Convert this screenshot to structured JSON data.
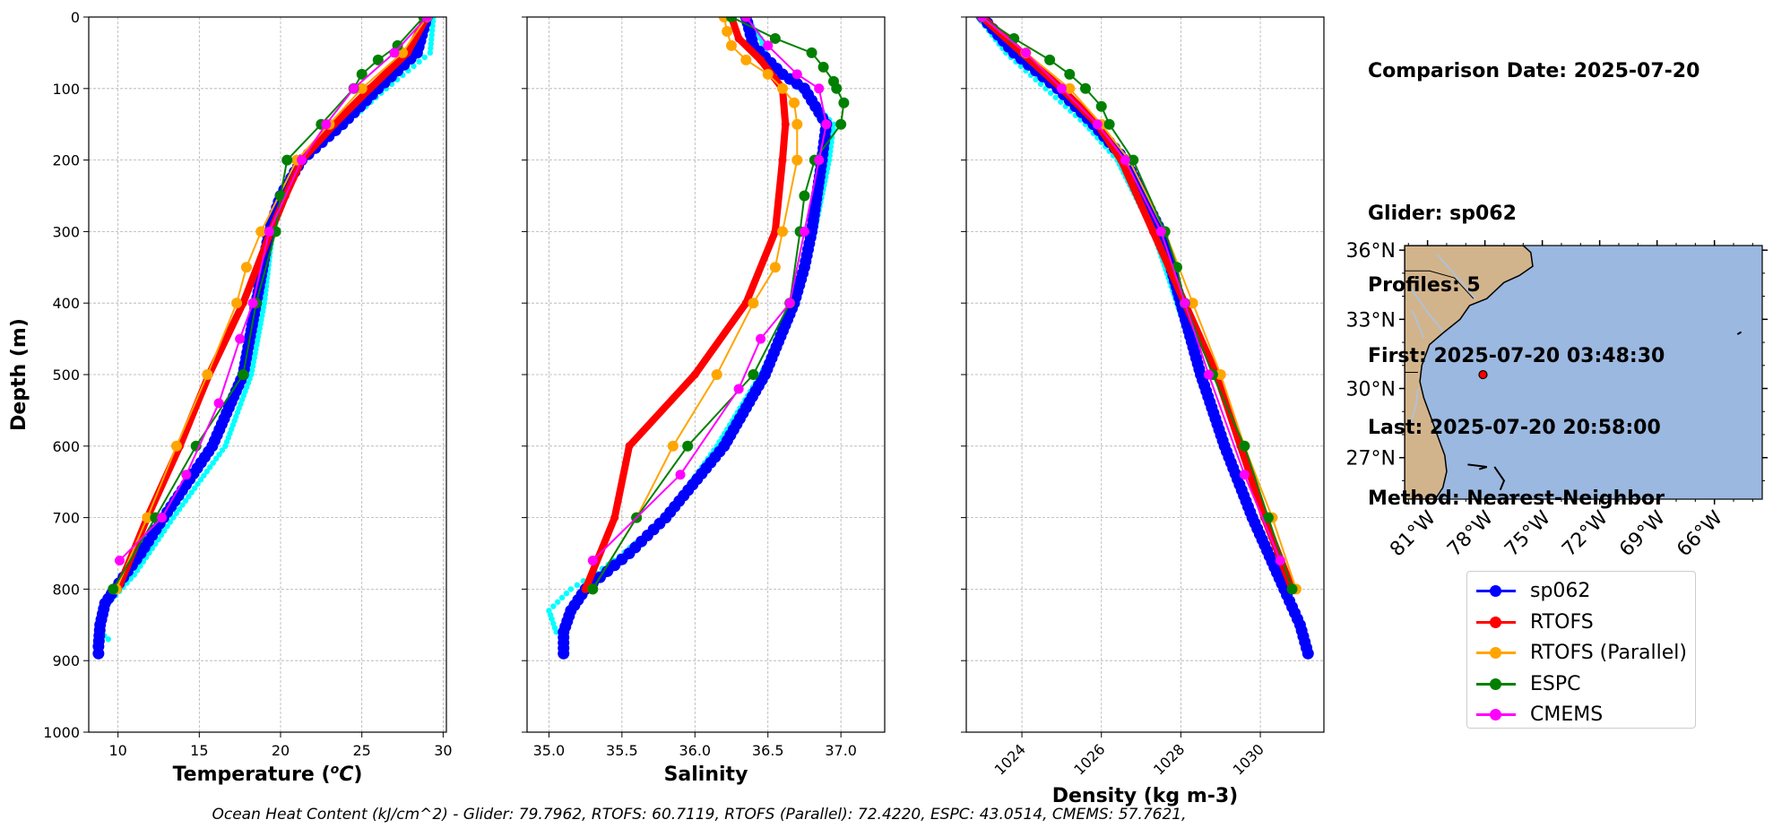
{
  "info": {
    "comparison_date": "Comparison Date: 2025-07-20",
    "glider": "Glider: sp062",
    "profiles": "Profiles: 5",
    "first": "First: 2025-07-20 03:48:30",
    "last": "Last: 2025-07-20 20:58:00",
    "method": "Method: Nearest-Neighbor"
  },
  "caption": "Ocean Heat Content (kJ/cm^2) - Glider: 79.7962,  RTOFS: 60.7119,  RTOFS (Parallel): 72.4220,  ESPC: 43.0514,  CMEMS: 57.7621,",
  "legend": [
    {
      "label": "sp062",
      "color": "#0000ff"
    },
    {
      "label": "RTOFS",
      "color": "#ff0000"
    },
    {
      "label": "RTOFS (Parallel)",
      "color": "#ffa500"
    },
    {
      "label": "ESPC",
      "color": "#008000"
    },
    {
      "label": "CMEMS",
      "color": "#ff00ff"
    }
  ],
  "colors": {
    "glider": "#0000ff",
    "glider_raw": "#00ffff",
    "rtofs": "#ff0000",
    "rtofs_parallel": "#ffa500",
    "espc": "#008000",
    "cmems": "#ff00ff",
    "land": "#d2b48c",
    "ocean": "#9bb8e0"
  },
  "chart_data": [
    {
      "type": "line",
      "panel": "temperature",
      "xlabel": "Temperature (°C)",
      "ylabel": "Depth (m)",
      "xlim": [
        8.2,
        30.2
      ],
      "ylim": [
        1000,
        0
      ],
      "xticks": [
        10,
        15,
        20,
        25,
        30
      ],
      "xtick_labels": [
        "10",
        "15",
        "20",
        "25",
        "30"
      ],
      "yticks": [
        0,
        100,
        200,
        300,
        400,
        500,
        600,
        700,
        800,
        900,
        1000
      ],
      "ytick_labels": [
        "0",
        "100",
        "200",
        "300",
        "400",
        "500",
        "600",
        "700",
        "800",
        "900",
        "1000"
      ],
      "grid": true,
      "series": [
        {
          "name": "sp062 raw",
          "color_key": "glider_raw",
          "depth": [
            0,
            50,
            100,
            150,
            200,
            300,
            400,
            500,
            600,
            700,
            780,
            820,
            840,
            860,
            870
          ],
          "values": [
            29.4,
            29.2,
            26.5,
            24.0,
            21.2,
            19.5,
            19.0,
            18.2,
            16.6,
            13.4,
            11.0,
            9.4,
            9.0,
            8.9,
            9.4
          ]
        },
        {
          "name": "sp062",
          "color_key": "glider",
          "depth": [
            0,
            50,
            100,
            150,
            200,
            250,
            300,
            400,
            500,
            600,
            700,
            750,
            800,
            820,
            850,
            880,
            890
          ],
          "values": [
            29.0,
            28.4,
            26.0,
            23.8,
            21.3,
            20.0,
            19.3,
            18.5,
            17.7,
            15.8,
            12.8,
            11.4,
            9.8,
            9.2,
            8.9,
            8.8,
            8.8
          ]
        },
        {
          "name": "RTOFS",
          "color_key": "rtofs",
          "depth": [
            0,
            50,
            100,
            150,
            200,
            250,
            300,
            400,
            500,
            600,
            700,
            800
          ],
          "values": [
            29.0,
            27.8,
            25.5,
            23.3,
            21.3,
            20.3,
            19.4,
            17.7,
            15.6,
            13.8,
            11.8,
            10.0
          ]
        },
        {
          "name": "RTOFS (Parallel)",
          "color_key": "rtofs_parallel",
          "depth": [
            0,
            50,
            100,
            150,
            200,
            300,
            350,
            400,
            500,
            600,
            700,
            800
          ],
          "values": [
            29.0,
            27.5,
            25.0,
            23.0,
            21.0,
            18.8,
            17.9,
            17.3,
            15.5,
            13.6,
            11.8,
            9.9
          ]
        },
        {
          "name": "ESPC",
          "color_key": "espc",
          "depth": [
            0,
            40,
            60,
            80,
            100,
            150,
            200,
            250,
            300,
            400,
            500,
            600,
            700,
            800
          ],
          "values": [
            28.8,
            27.2,
            26.0,
            25.0,
            24.5,
            22.5,
            20.4,
            20.0,
            19.7,
            18.5,
            17.7,
            14.8,
            12.3,
            9.7
          ]
        },
        {
          "name": "CMEMS",
          "color_key": "cmems",
          "depth": [
            0,
            50,
            100,
            150,
            200,
            300,
            400,
            450,
            540,
            640,
            700,
            760
          ],
          "values": [
            29.0,
            27.0,
            24.5,
            22.8,
            21.3,
            19.3,
            18.3,
            17.5,
            16.2,
            14.2,
            12.7,
            10.1
          ]
        }
      ]
    },
    {
      "type": "line",
      "panel": "salinity",
      "xlabel": "Salinity",
      "ylabel": "",
      "xlim": [
        34.85,
        37.3
      ],
      "ylim": [
        1000,
        0
      ],
      "xticks": [
        35.0,
        35.5,
        36.0,
        36.5,
        37.0
      ],
      "xtick_labels": [
        "35.0",
        "35.5",
        "36.0",
        "36.5",
        "37.0"
      ],
      "yticks": [
        0,
        100,
        200,
        300,
        400,
        500,
        600,
        700,
        800,
        900,
        1000
      ],
      "ytick_labels": [],
      "grid": true,
      "series": [
        {
          "name": "sp062 raw",
          "color_key": "glider_raw",
          "depth": [
            0,
            30,
            60,
            100,
            150,
            200,
            300,
            400,
            500,
            600,
            700,
            760,
            800,
            830,
            860
          ],
          "values": [
            36.35,
            36.45,
            36.5,
            36.72,
            36.95,
            36.92,
            36.82,
            36.7,
            36.45,
            36.15,
            35.8,
            35.45,
            35.15,
            35.0,
            35.05
          ]
        },
        {
          "name": "sp062",
          "color_key": "glider",
          "depth": [
            0,
            40,
            80,
            100,
            150,
            200,
            300,
            350,
            400,
            500,
            600,
            700,
            750,
            800,
            830,
            860,
            890
          ],
          "values": [
            36.35,
            36.4,
            36.6,
            36.75,
            36.9,
            36.87,
            36.8,
            36.75,
            36.68,
            36.48,
            36.2,
            35.8,
            35.55,
            35.25,
            35.15,
            35.1,
            35.1
          ]
        },
        {
          "name": "RTOFS",
          "color_key": "rtofs",
          "depth": [
            0,
            30,
            60,
            100,
            150,
            200,
            300,
            400,
            500,
            600,
            700,
            800
          ],
          "values": [
            36.25,
            36.3,
            36.45,
            36.6,
            36.62,
            36.6,
            36.55,
            36.35,
            36.0,
            35.55,
            35.45,
            35.25
          ]
        },
        {
          "name": "RTOFS (Parallel)",
          "color_key": "rtofs_parallel",
          "depth": [
            0,
            20,
            40,
            60,
            80,
            100,
            120,
            150,
            200,
            300,
            350,
            400,
            500,
            600,
            700,
            800
          ],
          "values": [
            36.2,
            36.22,
            36.25,
            36.35,
            36.5,
            36.6,
            36.68,
            36.7,
            36.7,
            36.6,
            36.55,
            36.4,
            36.15,
            35.85,
            35.6,
            35.3
          ]
        },
        {
          "name": "ESPC",
          "color_key": "espc",
          "depth": [
            0,
            30,
            50,
            70,
            90,
            100,
            120,
            150,
            200,
            250,
            300,
            400,
            500,
            600,
            700,
            800
          ],
          "values": [
            36.25,
            36.55,
            36.8,
            36.88,
            36.95,
            36.97,
            37.02,
            37.0,
            36.82,
            36.75,
            36.72,
            36.65,
            36.4,
            35.95,
            35.6,
            35.3
          ]
        },
        {
          "name": "CMEMS",
          "color_key": "cmems",
          "depth": [
            0,
            40,
            80,
            100,
            150,
            200,
            300,
            400,
            450,
            520,
            640,
            760
          ],
          "values": [
            36.35,
            36.5,
            36.7,
            36.85,
            36.9,
            36.85,
            36.75,
            36.65,
            36.45,
            36.3,
            35.9,
            35.3
          ]
        }
      ]
    },
    {
      "type": "line",
      "panel": "density",
      "xlabel": "Density (kg m-3)",
      "ylabel": "",
      "xlim": [
        1022.6,
        1031.6
      ],
      "ylim": [
        1000,
        0
      ],
      "xticks": [
        1024,
        1026,
        1028,
        1030
      ],
      "xtick_labels": [
        "1024",
        "1026",
        "1028",
        "1030"
      ],
      "yticks": [
        0,
        100,
        200,
        300,
        400,
        500,
        600,
        700,
        800,
        900,
        1000
      ],
      "ytick_labels": [],
      "grid": true,
      "series": [
        {
          "name": "sp062 raw",
          "color_key": "glider_raw",
          "depth": [
            0,
            50,
            100,
            150,
            200,
            300,
            400,
            500,
            600,
            700,
            800,
            860
          ],
          "values": [
            1022.9,
            1023.6,
            1024.6,
            1025.6,
            1026.4,
            1027.3,
            1027.9,
            1028.5,
            1029.1,
            1029.8,
            1030.6,
            1031.0
          ]
        },
        {
          "name": "sp062",
          "color_key": "glider",
          "depth": [
            0,
            50,
            100,
            150,
            200,
            300,
            400,
            500,
            600,
            700,
            800,
            850,
            890
          ],
          "values": [
            1023.0,
            1023.8,
            1024.9,
            1025.8,
            1026.6,
            1027.5,
            1028.0,
            1028.5,
            1029.1,
            1029.8,
            1030.6,
            1031.0,
            1031.2
          ]
        },
        {
          "name": "RTOFS",
          "color_key": "rtofs",
          "depth": [
            0,
            50,
            100,
            150,
            200,
            300,
            400,
            500,
            600,
            700,
            800
          ],
          "values": [
            1023.0,
            1024.0,
            1025.0,
            1025.9,
            1026.5,
            1027.3,
            1028.1,
            1028.9,
            1029.5,
            1030.1,
            1030.8
          ]
        },
        {
          "name": "RTOFS (Parallel)",
          "color_key": "rtofs_parallel",
          "depth": [
            0,
            50,
            100,
            150,
            200,
            300,
            400,
            500,
            600,
            700,
            800
          ],
          "values": [
            1023.0,
            1024.1,
            1025.2,
            1026.0,
            1026.7,
            1027.6,
            1028.3,
            1029.0,
            1029.6,
            1030.3,
            1030.9
          ]
        },
        {
          "name": "ESPC",
          "color_key": "espc",
          "depth": [
            0,
            30,
            60,
            80,
            100,
            125,
            150,
            200,
            300,
            350,
            400,
            500,
            600,
            700,
            800
          ],
          "values": [
            1023.0,
            1023.8,
            1024.7,
            1025.2,
            1025.6,
            1026.0,
            1026.2,
            1026.8,
            1027.6,
            1027.9,
            1028.1,
            1028.8,
            1029.6,
            1030.2,
            1030.8
          ]
        },
        {
          "name": "CMEMS",
          "color_key": "cmems",
          "depth": [
            0,
            50,
            100,
            150,
            200,
            300,
            400,
            500,
            640,
            760
          ],
          "values": [
            1023.0,
            1024.1,
            1025.0,
            1025.9,
            1026.6,
            1027.5,
            1028.1,
            1028.7,
            1029.6,
            1030.5
          ]
        }
      ]
    },
    {
      "type": "map",
      "panel": "location",
      "lon_range": [
        -82.2,
        -63.5
      ],
      "lat_range": [
        25.2,
        36.2
      ],
      "xtick_labels": [
        "81°W",
        "78°W",
        "75°W",
        "72°W",
        "69°W",
        "66°W"
      ],
      "xtick_values": [
        -81,
        -78,
        -75,
        -72,
        -69,
        -66
      ],
      "ytick_labels": [
        "36°N",
        "33°N",
        "30°N",
        "27°N"
      ],
      "ytick_values": [
        36,
        33,
        30,
        27
      ],
      "glider_position": {
        "lon": -78.1,
        "lat": 30.6
      }
    }
  ]
}
